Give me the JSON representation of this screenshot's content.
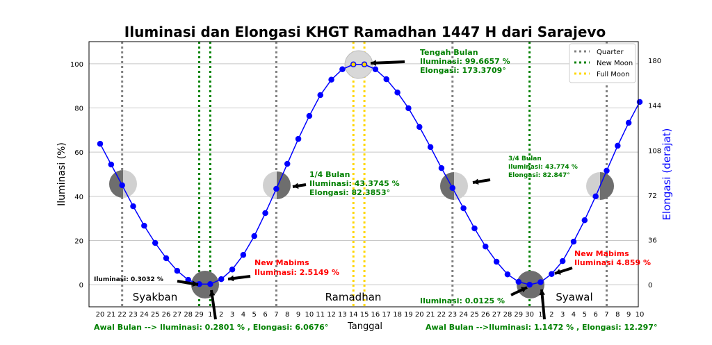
{
  "chart_data": {
    "type": "line",
    "title": "Iluminasi dan Elongasi KHGT Ramadhan 1447 H dari Sarajevo",
    "xlabel": "Tanggal",
    "ylabel": "Iluminasi (%)",
    "ylabel_right": "Elongasi (derajat)",
    "ylim": [
      -10,
      110
    ],
    "yticks": [
      0,
      20,
      40,
      60,
      80,
      100
    ],
    "yticks_right": [
      0,
      36,
      72,
      108,
      144,
      180
    ],
    "xtick_labels": [
      "20",
      "21",
      "22",
      "23",
      "24",
      "25",
      "26",
      "27",
      "28",
      "29",
      "1",
      "2",
      "3",
      "4",
      "5",
      "6",
      "7",
      "8",
      "9",
      "10",
      "11",
      "12",
      "13",
      "14",
      "15",
      "16",
      "17",
      "18",
      "19",
      "20",
      "21",
      "22",
      "23",
      "24",
      "25",
      "26",
      "27",
      "28",
      "29",
      "30",
      "1",
      "2",
      "3",
      "4",
      "5",
      "6",
      "7",
      "8",
      "9",
      "10"
    ],
    "series": [
      {
        "name": "Iluminasi",
        "color": "#0000ff",
        "values": [
          63.8,
          54.4,
          45,
          35.5,
          26.7,
          18.9,
          12,
          6.3,
          2.2,
          0.3,
          0.28,
          2.51,
          6.9,
          13.5,
          22,
          32.4,
          43.4,
          54.7,
          66,
          76.4,
          85.8,
          92.8,
          97.5,
          99.7,
          99.7,
          97.5,
          93,
          87,
          79.9,
          71.4,
          62.3,
          52.8,
          43.8,
          34.6,
          25.5,
          17.3,
          10.4,
          4.7,
          1.3,
          0.01,
          1.15,
          4.86,
          10.7,
          19.5,
          29.2,
          40,
          51.6,
          62.9,
          73.3,
          82.7
        ]
      }
    ],
    "vlines": {
      "quarter": [
        2,
        16,
        32,
        46
      ],
      "new_moon": [
        9,
        10,
        39
      ],
      "full_moon": [
        23,
        24
      ]
    },
    "legend": {
      "placement": "top-right",
      "entries": [
        {
          "label": "Quarter",
          "color": "#808080"
        },
        {
          "label": "New Moon",
          "color": "#008000"
        },
        {
          "label": "Full Moon",
          "color": "#ffd700"
        }
      ]
    },
    "months": [
      "Syakban",
      "Ramadhan",
      "Syawal"
    ],
    "annotations": {
      "ilum_left": "Iluminasi: 0.3032 %",
      "mabims1": [
        "New Mabims",
        "Iluminasi: 2.5149 %"
      ],
      "awal1": "Awal Bulan --> Iluminasi: 0.2801 % , Elongasi: 6.0676°",
      "q1": [
        "1/4 Bulan",
        "Iluminasi: 43.3745 %",
        "Elongasi: 82.3853°"
      ],
      "full": [
        "Tengah Bulan",
        "Iluminasi: 99.6657 %",
        "Elongasi: 173.3709°"
      ],
      "q3": [
        "3/4 Bulan",
        "Iluminasi: 43.774 %",
        "Elongasi: 82.847°"
      ],
      "ilum_right": "Iluminasi: 0.0125 %",
      "mabims2": [
        "New Mabims",
        "Iluminasi 4.859 %"
      ],
      "awal2": "Awal Bulan -->Iluminasi: 1.1472 % , Elongasi: 12.297°"
    }
  }
}
